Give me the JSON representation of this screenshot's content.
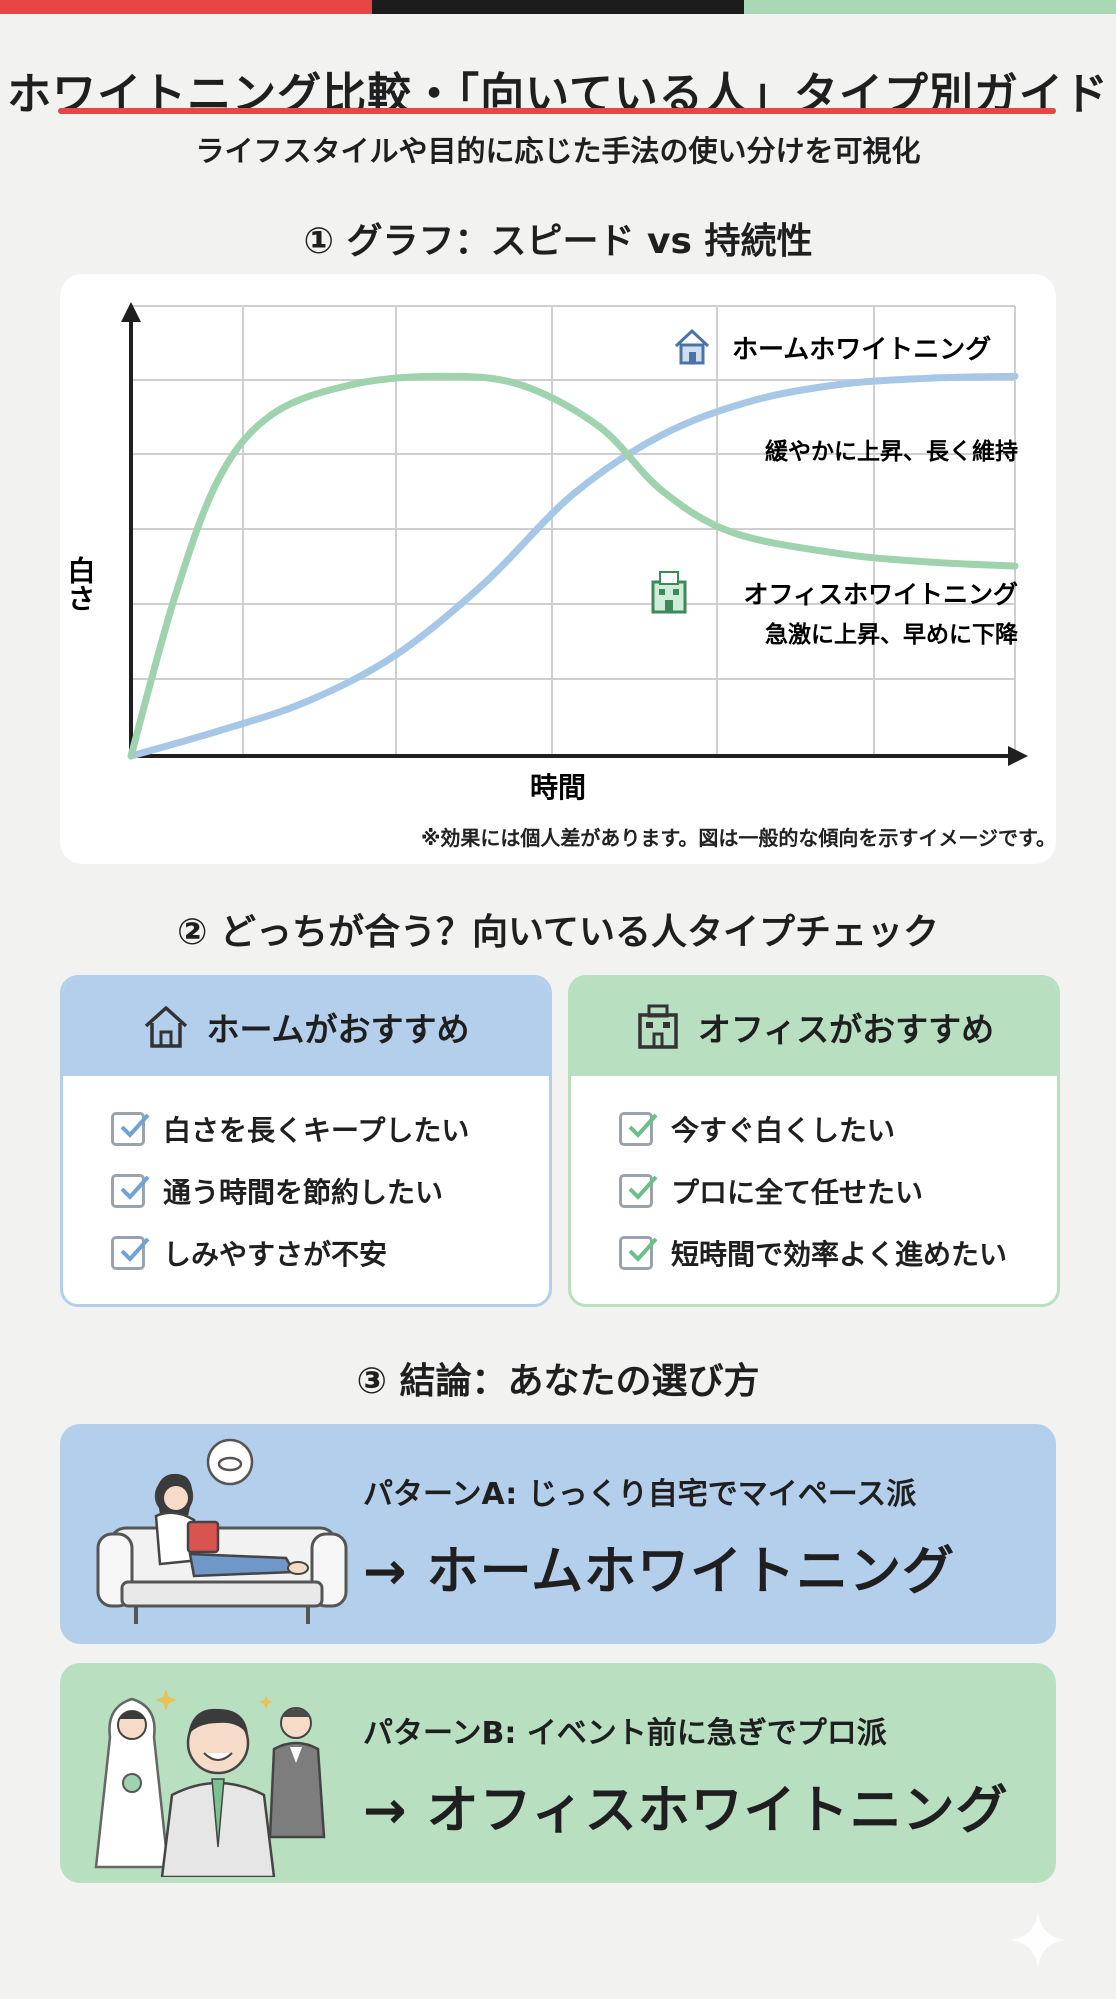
{
  "title": "ホワイトニング比較・「向いている人」タイプ別ガイド",
  "subtitle": "ライフスタイルや目的に応じた手法の使い分けを可視化",
  "section1_heading": "① グラフ：スピード vs 持続性",
  "chart_data": {
    "type": "line",
    "ylabel": "白さ",
    "xlabel": "時間",
    "xlim": [
      0,
      10
    ],
    "ylim": [
      0,
      10
    ],
    "grid": true,
    "series": [
      {
        "name": "ホームホワイトニング",
        "description": "緩やかに上昇、長く維持",
        "color": "#a7c7e7",
        "icon": "house-icon",
        "points": [
          [
            0,
            0
          ],
          [
            1,
            0.6
          ],
          [
            2,
            1.3
          ],
          [
            3,
            2.4
          ],
          [
            4,
            4.1
          ],
          [
            5,
            6.2
          ],
          [
            6,
            7.6
          ],
          [
            7,
            8.4
          ],
          [
            8,
            8.8
          ],
          [
            9,
            8.95
          ],
          [
            10,
            9
          ]
        ]
      },
      {
        "name": "オフィスホワイトニング",
        "description": "急激に上昇、早めに下降",
        "color": "#9fd3ad",
        "icon": "office-building-icon",
        "points": [
          [
            0,
            0
          ],
          [
            0.5,
            3.8
          ],
          [
            1,
            6.6
          ],
          [
            1.6,
            8.1
          ],
          [
            2.5,
            8.8
          ],
          [
            3.5,
            9.0
          ],
          [
            4.4,
            8.8
          ],
          [
            5.3,
            7.8
          ],
          [
            6,
            6.3
          ],
          [
            6.8,
            5.3
          ],
          [
            8,
            4.8
          ],
          [
            9,
            4.6
          ],
          [
            10,
            4.5
          ]
        ]
      }
    ]
  },
  "chart_note": "※効果には個人差があります。図は一般的な傾向を示すイメージです。",
  "section2_heading": "② どっちが合う？向いている人タイプチェック",
  "home_card": {
    "title": "ホームがおすすめ",
    "icon": "house-icon",
    "items": [
      "白さを長くキープしたい",
      "通う時間を節約したい",
      "しみやすさが不安"
    ]
  },
  "office_card": {
    "title": "オフィスがおすすめ",
    "icon": "office-building-icon",
    "items": [
      "今すぐ白くしたい",
      "プロに全て任せたい",
      "短時間で効率よく進めたい"
    ]
  },
  "section3_heading": "③ 結論：あなたの選び方",
  "pattern_a": {
    "sub": "パターンA: じっくり自宅でマイペース派",
    "main": "→ ホームホワイトニング",
    "illustration": "woman-reading-on-sofa"
  },
  "pattern_b": {
    "sub": "パターンB: イベント前に急ぎでプロ派",
    "main": "→ オフィスホワイトニング",
    "illustration": "wedding-couple-and-smiling-man"
  },
  "colors": {
    "blue": "#a7c7e7",
    "green": "#9fd3ad",
    "blue_panel": "#b4cfec",
    "green_panel": "#b8dfc0",
    "accent_red": "#e84545"
  }
}
